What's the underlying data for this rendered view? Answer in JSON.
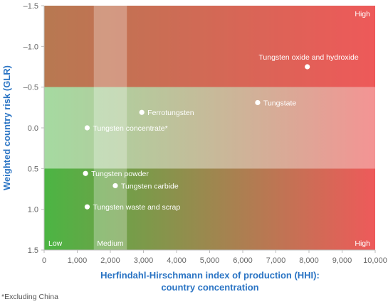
{
  "chart_data": {
    "type": "scatter",
    "title": "",
    "xlabel_lines": [
      "Herfindahl-Hirschmann index of production (HHI):",
      "country concentration"
    ],
    "ylabel": "Weighted country risk (GLR)",
    "xlim": [
      0,
      10000
    ],
    "ylim": [
      -1.5,
      1.5
    ],
    "y_inverted": true,
    "x_ticks": [
      {
        "v": 0,
        "label": "0"
      },
      {
        "v": 1000,
        "label": "1,000"
      },
      {
        "v": 2000,
        "label": "2,000"
      },
      {
        "v": 3000,
        "label": "3,000"
      },
      {
        "v": 4000,
        "label": "4,000"
      },
      {
        "v": 5000,
        "label": "5,000"
      },
      {
        "v": 6000,
        "label": "6,000"
      },
      {
        "v": 7000,
        "label": "7,000"
      },
      {
        "v": 8000,
        "label": "8,000"
      },
      {
        "v": 9000,
        "label": "9,000"
      },
      {
        "v": 10000,
        "label": "10,000"
      }
    ],
    "y_ticks": [
      {
        "v": -1.5,
        "label": "–1.5"
      },
      {
        "v": -1.0,
        "label": "–1.0"
      },
      {
        "v": -0.5,
        "label": "–0.5"
      },
      {
        "v": 0.0,
        "label": "0.0"
      },
      {
        "v": 0.5,
        "label": "0.5"
      },
      {
        "v": 1.0,
        "label": "1.0"
      },
      {
        "v": 1.5,
        "label": "1.5"
      }
    ],
    "medium_band_x": [
      1500,
      2500
    ],
    "medium_band_y": [
      -0.5,
      0.5
    ],
    "zone_labels": [
      {
        "text": "Low",
        "x": 0,
        "y": 1.5,
        "anchor": "start",
        "vpos": "bottom"
      },
      {
        "text": "Medium",
        "x": 2000,
        "y": 1.5,
        "anchor": "middle",
        "vpos": "bottom"
      },
      {
        "text": "High",
        "x": 10000,
        "y": 1.5,
        "anchor": "end",
        "vpos": "bottom"
      },
      {
        "text": "High",
        "x": 10000,
        "y": -1.5,
        "anchor": "end",
        "vpos": "top"
      }
    ],
    "points": [
      {
        "label": "Tungsten oxide and hydroxide",
        "x": 7950,
        "y": -0.75,
        "label_pos": "above-left"
      },
      {
        "label": "Tungstate",
        "x": 6450,
        "y": -0.31,
        "label_pos": "right"
      },
      {
        "label": "Ferrotungsten",
        "x": 2950,
        "y": -0.19,
        "label_pos": "right"
      },
      {
        "label": "Tungsten concentrate*",
        "x": 1300,
        "y": 0.0,
        "label_pos": "right"
      },
      {
        "label": "Tungsten powder",
        "x": 1250,
        "y": 0.56,
        "label_pos": "right"
      },
      {
        "label": "Tungsten carbide",
        "x": 2150,
        "y": 0.71,
        "label_pos": "right"
      },
      {
        "label": "Tungsten waste and scrap",
        "x": 1300,
        "y": 0.97,
        "label_pos": "right"
      }
    ],
    "colors": {
      "green": "#4bb543",
      "olive": "#9a8a4e",
      "red": "#ee5a5a",
      "axis_title": "#2a74c4"
    }
  },
  "footnote": "*Excluding China"
}
